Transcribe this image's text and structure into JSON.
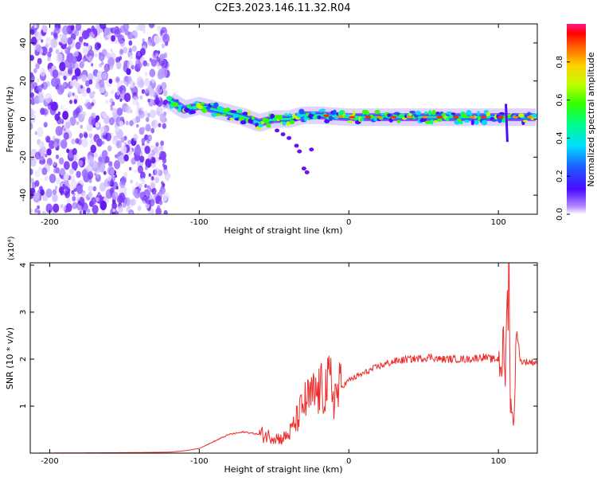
{
  "title": "C2E3.2023.146.11.32.R04",
  "chart_data": [
    {
      "type": "heatmap",
      "xlabel": "Height of straight line (km)",
      "ylabel": "Frequency (Hz)",
      "xlim": [
        -213,
        126
      ],
      "ylim": [
        -50,
        50
      ],
      "xticks": [
        -200,
        -100,
        0,
        100
      ],
      "yticks": [
        -40,
        -20,
        0,
        20,
        40
      ],
      "colorbar": {
        "label": "Normalized spectral amplitude",
        "range": [
          0,
          1
        ],
        "ticks": [
          0.0,
          0.2,
          0.4,
          0.6,
          0.8
        ],
        "tick_labels": [
          "0.0",
          "0.2",
          "0.4",
          "0.6",
          "0.8"
        ]
      },
      "trace_points": [
        {
          "x": -120,
          "y": 10
        },
        {
          "x": -110,
          "y": 5
        },
        {
          "x": -100,
          "y": 7
        },
        {
          "x": -90,
          "y": 5
        },
        {
          "x": -80,
          "y": 3
        },
        {
          "x": -70,
          "y": 1
        },
        {
          "x": -60,
          "y": -2
        },
        {
          "x": -50,
          "y": 0
        },
        {
          "x": -40,
          "y": 0
        },
        {
          "x": -30,
          "y": 2
        },
        {
          "x": -20,
          "y": 2
        },
        {
          "x": 0,
          "y": 1
        },
        {
          "x": 20,
          "y": 1
        },
        {
          "x": 40,
          "y": 1
        },
        {
          "x": 60,
          "y": 1
        },
        {
          "x": 80,
          "y": 1
        },
        {
          "x": 100,
          "y": 1
        },
        {
          "x": 125,
          "y": 1
        }
      ]
    },
    {
      "type": "line",
      "xlabel": "Height of straight line (km)",
      "ylabel": "SNR (10 * v/v)",
      "y_multiplier": "(x10⁴)",
      "xlim": [
        -213,
        126
      ],
      "ylim": [
        0,
        4.05
      ],
      "xticks": [
        -200,
        -100,
        0,
        100
      ],
      "yticks": [
        1,
        2,
        3,
        4
      ],
      "series": [
        {
          "color": "#ee2c2c",
          "x": [
            -213,
            -150,
            -120,
            -110,
            -100,
            -90,
            -80,
            -70,
            -60,
            -50,
            -45,
            -40,
            -35,
            -30,
            -25,
            -20,
            -15,
            -12,
            -10,
            -5,
            0,
            10,
            20,
            30,
            40,
            50,
            55,
            60,
            70,
            80,
            90,
            95,
            100,
            103,
            105,
            106,
            107,
            108,
            110,
            112,
            115,
            126
          ],
          "y": [
            0.0,
            0.01,
            0.02,
            0.05,
            0.1,
            0.25,
            0.4,
            0.45,
            0.4,
            0.35,
            0.3,
            0.4,
            0.7,
            1.05,
            1.2,
            1.3,
            1.4,
            1.5,
            1.2,
            1.4,
            1.55,
            1.7,
            1.85,
            1.95,
            2.0,
            2.02,
            2.05,
            2.0,
            2.0,
            2.0,
            2.05,
            2.0,
            2.0,
            2.1,
            1.8,
            3.4,
            4.0,
            1.3,
            0.5,
            2.6,
            1.95,
            1.93
          ]
        }
      ]
    }
  ]
}
